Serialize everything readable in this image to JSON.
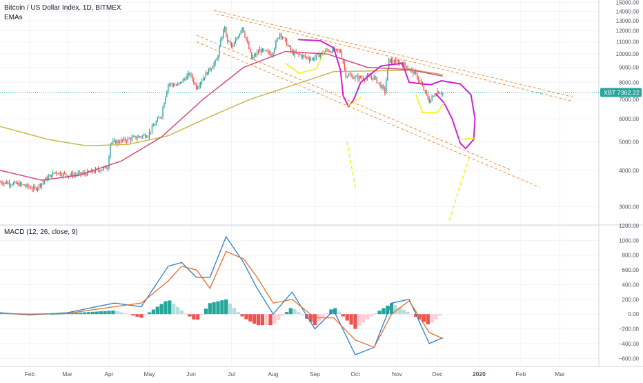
{
  "header": {
    "symbol_title": "Bitcoin / US Dollar Index, 1D, BITMEX",
    "indicator_label": "EMAs"
  },
  "macd_header": {
    "label": "MACD (12, 26, close, 9)"
  },
  "price_badge": {
    "label": "XBT",
    "value": "7362.22",
    "color": "#26a69a"
  },
  "colors": {
    "candle_up": "#26a69a",
    "candle_down": "#ef5350",
    "ema_short": "#d4497a",
    "ema_long": "#c9b74a",
    "channel": "#f08c3a",
    "marker_magenta": "#d020d0",
    "marker_yellow": "#f2f20a",
    "macd_line": "#2a7fd0",
    "signal_line": "#e0702a",
    "hist_up_strong": "#26a69a",
    "hist_up_weak": "#b2dfdb",
    "hist_down_strong": "#ef5350",
    "hist_down_weak": "#ffcdd2"
  },
  "chart_data": [
    {
      "type": "candlestick",
      "title": "Bitcoin / US Dollar Index, 1D, BITMEX",
      "y_scale": "log",
      "ylim": [
        2600,
        15300
      ],
      "y_ticks": [
        {
          "label": "15000.00",
          "value": 15000
        },
        {
          "label": "14000.00",
          "value": 14000
        },
        {
          "label": "13000.00",
          "value": 13000
        },
        {
          "label": "12000.00",
          "value": 12000
        },
        {
          "label": "11000.00",
          "value": 11000
        },
        {
          "label": "10000.00",
          "value": 10000
        },
        {
          "label": "9000.00",
          "value": 9000
        },
        {
          "label": "8000.00",
          "value": 8000
        },
        {
          "label": "7000.00",
          "value": 7000
        },
        {
          "label": "6000.00",
          "value": 6000
        },
        {
          "label": "5000.00",
          "value": 5000
        },
        {
          "label": "4000.00",
          "value": 4000
        },
        {
          "label": "3000.00",
          "value": 3000
        }
      ],
      "x_range": [
        "2019-01-10",
        "2020-03-30"
      ],
      "x_ticks": [
        {
          "label": "Feb",
          "date": "2019-02-01"
        },
        {
          "label": "Mar",
          "date": "2019-03-01"
        },
        {
          "label": "Apr",
          "date": "2019-04-01"
        },
        {
          "label": "May",
          "date": "2019-05-01"
        },
        {
          "label": "Jun",
          "date": "2019-06-01"
        },
        {
          "label": "Jul",
          "date": "2019-07-01"
        },
        {
          "label": "Aug",
          "date": "2019-08-01"
        },
        {
          "label": "Sep",
          "date": "2019-09-01"
        },
        {
          "label": "Oct",
          "date": "2019-10-01"
        },
        {
          "label": "Nov",
          "date": "2019-11-01"
        },
        {
          "label": "Dec",
          "date": "2019-12-01"
        },
        {
          "label": "2020",
          "date": "2020-01-01"
        },
        {
          "label": "Feb",
          "date": "2020-02-01"
        },
        {
          "label": "Mar",
          "date": "2020-03-01"
        }
      ],
      "close_path": [
        [
          "2019-01-10",
          3650
        ],
        [
          "2019-01-25",
          3580
        ],
        [
          "2019-02-05",
          3450
        ],
        [
          "2019-02-10",
          3620
        ],
        [
          "2019-02-20",
          3950
        ],
        [
          "2019-03-01",
          3850
        ],
        [
          "2019-03-15",
          3900
        ],
        [
          "2019-03-31",
          4100
        ],
        [
          "2019-04-02",
          4950
        ],
        [
          "2019-04-15",
          5100
        ],
        [
          "2019-04-30",
          5300
        ],
        [
          "2019-05-10",
          6200
        ],
        [
          "2019-05-15",
          7900
        ],
        [
          "2019-05-22",
          7800
        ],
        [
          "2019-05-31",
          8550
        ],
        [
          "2019-06-05",
          7700
        ],
        [
          "2019-06-15",
          8900
        ],
        [
          "2019-06-20",
          9500
        ],
        [
          "2019-06-26",
          12500
        ],
        [
          "2019-06-27",
          11300
        ],
        [
          "2019-07-02",
          10500
        ],
        [
          "2019-07-09",
          12400
        ],
        [
          "2019-07-16",
          9600
        ],
        [
          "2019-07-22",
          10300
        ],
        [
          "2019-07-31",
          10000
        ],
        [
          "2019-08-06",
          11800
        ],
        [
          "2019-08-15",
          10100
        ],
        [
          "2019-08-30",
          9600
        ],
        [
          "2019-09-10",
          10300
        ],
        [
          "2019-09-20",
          10200
        ],
        [
          "2019-09-24",
          8500
        ],
        [
          "2019-10-01",
          8300
        ],
        [
          "2019-10-15",
          8300
        ],
        [
          "2019-10-23",
          7450
        ],
        [
          "2019-10-26",
          9500
        ],
        [
          "2019-11-05",
          9300
        ],
        [
          "2019-11-15",
          8500
        ],
        [
          "2019-11-25",
          6900
        ],
        [
          "2019-12-01",
          7450
        ],
        [
          "2019-12-05",
          7362.22
        ]
      ],
      "ema_short": [
        [
          "2019-01-10",
          4000
        ],
        [
          "2019-02-10",
          3700
        ],
        [
          "2019-03-10",
          3850
        ],
        [
          "2019-04-10",
          4300
        ],
        [
          "2019-05-10",
          5200
        ],
        [
          "2019-06-10",
          7000
        ],
        [
          "2019-07-10",
          9000
        ],
        [
          "2019-08-10",
          10200
        ],
        [
          "2019-09-10",
          10000
        ],
        [
          "2019-10-10",
          9000
        ],
        [
          "2019-11-10",
          8850
        ],
        [
          "2019-12-05",
          8400
        ]
      ],
      "ema_long": [
        [
          "2019-01-10",
          5650
        ],
        [
          "2019-02-15",
          5100
        ],
        [
          "2019-03-15",
          4850
        ],
        [
          "2019-04-15",
          4900
        ],
        [
          "2019-05-15",
          5250
        ],
        [
          "2019-06-15",
          6100
        ],
        [
          "2019-07-15",
          7000
        ],
        [
          "2019-08-15",
          7800
        ],
        [
          "2019-09-15",
          8700
        ],
        [
          "2019-10-15",
          8750
        ],
        [
          "2019-11-15",
          8800
        ],
        [
          "2019-12-05",
          8500
        ]
      ],
      "channel_lines": [
        [
          [
            "2019-06-18",
            14100
          ],
          [
            "2020-03-12",
            7100
          ]
        ],
        [
          [
            "2019-06-20",
            13700
          ],
          [
            "2020-03-10",
            6900
          ]
        ],
        [
          [
            "2019-06-05",
            11600
          ],
          [
            "2020-01-25",
            4000
          ]
        ],
        [
          [
            "2019-06-05",
            11000
          ],
          [
            "2020-02-15",
            3500
          ]
        ]
      ],
      "markers_magenta": [
        [
          "2019-08-20",
          11200
        ],
        [
          "2019-09-05",
          11100
        ],
        [
          "2019-09-15",
          10500
        ],
        [
          "2019-09-20",
          8800
        ],
        [
          "2019-09-22",
          7200
        ],
        [
          "2019-09-26",
          6600
        ],
        [
          "2019-09-30",
          7000
        ],
        [
          "2019-10-05",
          8000
        ],
        [
          "2019-10-20",
          9100
        ],
        [
          "2019-11-05",
          9300
        ],
        [
          "2019-11-10",
          8000
        ],
        [
          "2019-11-20",
          7900
        ],
        [
          "2019-11-26",
          7850
        ],
        [
          "2019-12-04",
          8100
        ],
        [
          "2019-12-18",
          7900
        ],
        [
          "2019-12-26",
          7250
        ],
        [
          "2019-12-29",
          6000
        ],
        [
          "2019-12-28",
          5100
        ],
        [
          "2019-12-22",
          4750
        ],
        [
          "2019-12-18",
          4950
        ],
        [
          "2019-12-12",
          6000
        ],
        [
          "2019-12-06",
          6800
        ],
        [
          "2019-11-30",
          7300
        ]
      ],
      "markers_yellow": [
        [
          [
            "2019-08-10",
            9300
          ],
          [
            "2019-08-20",
            8600
          ],
          [
            "2019-09-02",
            8900
          ],
          [
            "2019-09-08",
            10200
          ]
        ],
        [
          [
            "2019-09-25",
            6600
          ],
          [
            "2019-10-05",
            7100
          ]
        ],
        [
          [
            "2019-11-15",
            7250
          ],
          [
            "2019-11-20",
            6300
          ],
          [
            "2019-12-01",
            6300
          ],
          [
            "2019-12-06",
            6800
          ]
        ],
        [
          [
            "2019-12-17",
            5100
          ],
          [
            "2019-12-28",
            5150
          ]
        ],
        [
          [
            "2019-09-25",
            5000
          ],
          [
            "2019-10-01",
            3500
          ]
        ],
        [
          [
            "2019-12-10",
            2700
          ],
          [
            "2019-12-25",
            4500
          ]
        ]
      ]
    },
    {
      "type": "macd",
      "title": "MACD (12, 26, close, 9)",
      "ylim": [
        -700,
        1200
      ],
      "y_ticks": [
        {
          "label": "1200.00",
          "value": 1200
        },
        {
          "label": "1000.00",
          "value": 1000
        },
        {
          "label": "800.00",
          "value": 800
        },
        {
          "label": "600.00",
          "value": 600
        },
        {
          "label": "400.00",
          "value": 400
        },
        {
          "label": "200.00",
          "value": 200
        },
        {
          "label": "0.00",
          "value": 0
        },
        {
          "label": "−200.00",
          "value": -200
        },
        {
          "label": "−400.00",
          "value": -400
        },
        {
          "label": "−600.00",
          "value": -600
        }
      ],
      "macd": [
        [
          "2019-01-10",
          20
        ],
        [
          "2019-02-01",
          -10
        ],
        [
          "2019-03-01",
          20
        ],
        [
          "2019-04-05",
          150
        ],
        [
          "2019-04-25",
          100
        ],
        [
          "2019-05-15",
          650
        ],
        [
          "2019-05-25",
          700
        ],
        [
          "2019-06-05",
          500
        ],
        [
          "2019-06-15",
          500
        ],
        [
          "2019-06-27",
          1050
        ],
        [
          "2019-07-10",
          700
        ],
        [
          "2019-07-20",
          350
        ],
        [
          "2019-08-01",
          0
        ],
        [
          "2019-08-15",
          300
        ],
        [
          "2019-09-01",
          -200
        ],
        [
          "2019-09-15",
          50
        ],
        [
          "2019-10-01",
          -550
        ],
        [
          "2019-10-15",
          -450
        ],
        [
          "2019-10-28",
          150
        ],
        [
          "2019-11-10",
          200
        ],
        [
          "2019-11-25",
          -400
        ],
        [
          "2019-12-05",
          -320
        ]
      ],
      "signal": [
        [
          "2019-01-10",
          10
        ],
        [
          "2019-02-01",
          0
        ],
        [
          "2019-03-01",
          10
        ],
        [
          "2019-04-05",
          100
        ],
        [
          "2019-04-25",
          150
        ],
        [
          "2019-05-15",
          450
        ],
        [
          "2019-05-25",
          650
        ],
        [
          "2019-06-05",
          600
        ],
        [
          "2019-06-15",
          350
        ],
        [
          "2019-06-27",
          850
        ],
        [
          "2019-07-10",
          750
        ],
        [
          "2019-07-20",
          500
        ],
        [
          "2019-08-01",
          150
        ],
        [
          "2019-08-15",
          200
        ],
        [
          "2019-09-01",
          -50
        ],
        [
          "2019-09-15",
          -50
        ],
        [
          "2019-10-01",
          -350
        ],
        [
          "2019-10-15",
          -450
        ],
        [
          "2019-10-28",
          0
        ],
        [
          "2019-11-10",
          180
        ],
        [
          "2019-11-25",
          -250
        ],
        [
          "2019-12-05",
          -330
        ]
      ],
      "histogram_sample_days": 3
    }
  ]
}
